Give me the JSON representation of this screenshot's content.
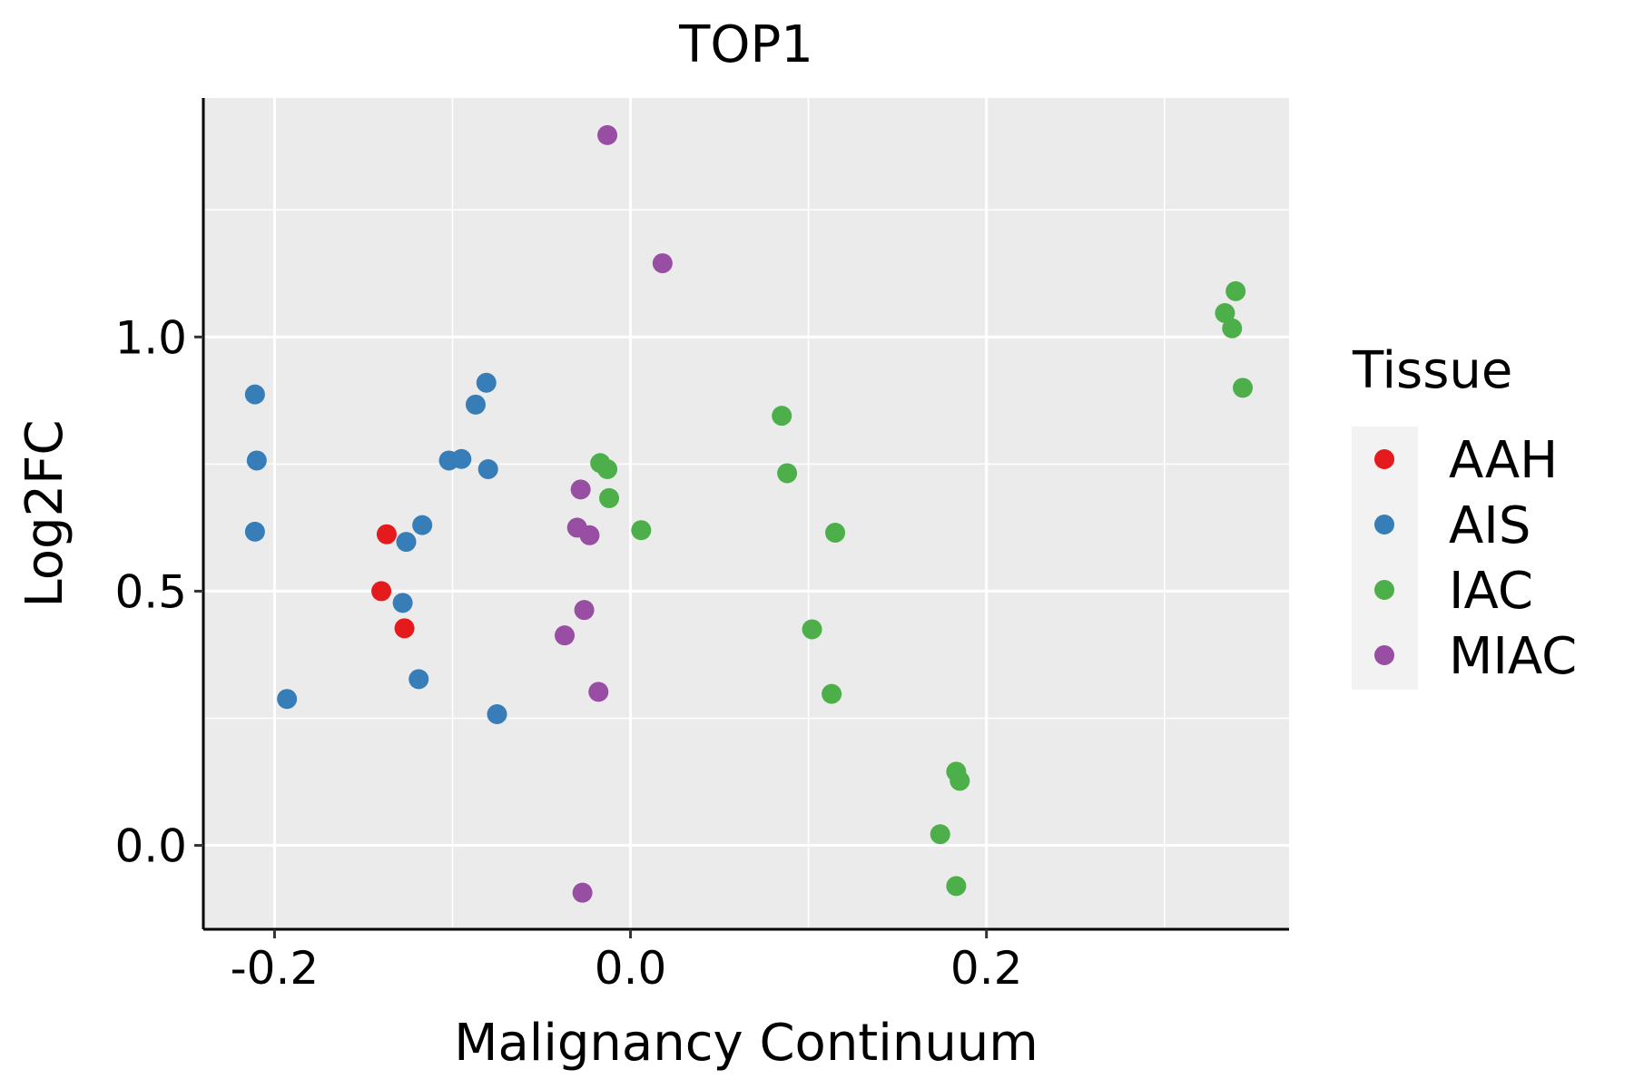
{
  "chart_data": {
    "type": "scatter",
    "title": "TOP1",
    "xlabel": "Malignancy Continuum",
    "ylabel": "Log2FC",
    "xlim": [
      -0.24,
      0.37
    ],
    "ylim": [
      -0.165,
      1.47
    ],
    "x_ticks": [
      -0.2,
      0.0,
      0.2
    ],
    "x_tick_labels": [
      "-0.2",
      "0.0",
      "0.2"
    ],
    "x_minor_ticks": [
      -0.1,
      0.1,
      0.3
    ],
    "y_ticks": [
      0.0,
      0.5,
      1.0
    ],
    "y_tick_labels": [
      "0.0",
      "0.5",
      "1.0"
    ],
    "y_minor_ticks": [
      0.25,
      0.75,
      1.25
    ],
    "grid": true,
    "legend_title": "Tissue",
    "legend_position": "right",
    "series": [
      {
        "name": "AAH",
        "color": "#e41a1c",
        "points": [
          {
            "x": -0.137,
            "y": 0.612
          },
          {
            "x": -0.14,
            "y": 0.5
          },
          {
            "x": -0.127,
            "y": 0.427
          }
        ]
      },
      {
        "name": "AIS",
        "color": "#377eb8",
        "points": [
          {
            "x": -0.211,
            "y": 0.887
          },
          {
            "x": -0.21,
            "y": 0.757
          },
          {
            "x": -0.211,
            "y": 0.617
          },
          {
            "x": -0.193,
            "y": 0.288
          },
          {
            "x": -0.126,
            "y": 0.597
          },
          {
            "x": -0.128,
            "y": 0.477
          },
          {
            "x": -0.117,
            "y": 0.63
          },
          {
            "x": -0.119,
            "y": 0.327
          },
          {
            "x": -0.102,
            "y": 0.757
          },
          {
            "x": -0.095,
            "y": 0.76
          },
          {
            "x": -0.087,
            "y": 0.867
          },
          {
            "x": -0.081,
            "y": 0.91
          },
          {
            "x": -0.08,
            "y": 0.74
          },
          {
            "x": -0.075,
            "y": 0.258
          }
        ]
      },
      {
        "name": "IAC",
        "color": "#4daf4a",
        "points": [
          {
            "x": -0.017,
            "y": 0.752
          },
          {
            "x": -0.013,
            "y": 0.74
          },
          {
            "x": -0.012,
            "y": 0.683
          },
          {
            "x": 0.006,
            "y": 0.62
          },
          {
            "x": 0.085,
            "y": 0.845
          },
          {
            "x": 0.088,
            "y": 0.732
          },
          {
            "x": 0.115,
            "y": 0.615
          },
          {
            "x": 0.102,
            "y": 0.425
          },
          {
            "x": 0.113,
            "y": 0.298
          },
          {
            "x": 0.183,
            "y": 0.145
          },
          {
            "x": 0.185,
            "y": 0.127
          },
          {
            "x": 0.174,
            "y": 0.022
          },
          {
            "x": 0.183,
            "y": -0.08
          },
          {
            "x": 0.34,
            "y": 1.09
          },
          {
            "x": 0.334,
            "y": 1.047
          },
          {
            "x": 0.338,
            "y": 1.017
          },
          {
            "x": 0.344,
            "y": 0.9
          }
        ]
      },
      {
        "name": "MIAC",
        "color": "#984ea3",
        "points": [
          {
            "x": -0.013,
            "y": 1.397
          },
          {
            "x": 0.018,
            "y": 1.145
          },
          {
            "x": -0.028,
            "y": 0.7
          },
          {
            "x": -0.03,
            "y": 0.625
          },
          {
            "x": -0.023,
            "y": 0.61
          },
          {
            "x": -0.026,
            "y": 0.463
          },
          {
            "x": -0.037,
            "y": 0.413
          },
          {
            "x": -0.018,
            "y": 0.302
          },
          {
            "x": -0.027,
            "y": -0.093
          }
        ]
      }
    ]
  }
}
